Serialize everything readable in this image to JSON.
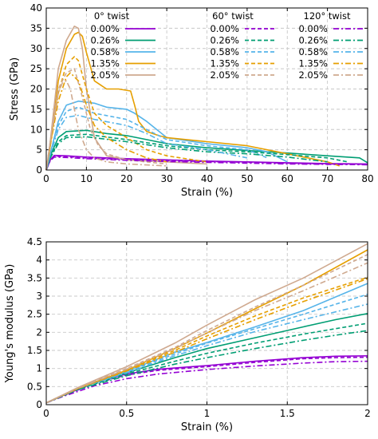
{
  "colors": {
    "0.00%": "#9400d3",
    "0.26%": "#009e73",
    "0.58%": "#56b4e9",
    "1.35%": "#e69f00",
    "2.05%": "#cfa98f"
  },
  "chart_data": [
    {
      "type": "line",
      "title": "",
      "xlabel": "Strain (%)",
      "ylabel": "Stress (GPa)",
      "xlim": [
        0,
        80
      ],
      "ylim": [
        0,
        40
      ],
      "xticks": [
        "0",
        "10",
        "20",
        "30",
        "40",
        "50",
        "60",
        "70",
        "80"
      ],
      "yticks": [
        "0",
        "5",
        "10",
        "15",
        "20",
        "25",
        "30",
        "35",
        "40"
      ],
      "grid": true,
      "legend": {
        "placement": "top-right",
        "group_titles": [
          "0° twist",
          "60° twist",
          "120° twist"
        ],
        "entries": [
          "0.00%",
          "0.26%",
          "0.58%",
          "1.35%",
          "2.05%"
        ]
      },
      "series": [
        {
          "twist": "0°",
          "level": "0.00%",
          "style": "solid",
          "x": [
            0,
            1,
            2,
            5,
            10,
            20,
            30,
            40,
            50,
            60,
            70,
            80
          ],
          "y": [
            0,
            2.5,
            3.6,
            3.5,
            3.2,
            2.8,
            2.5,
            2.2,
            2.0,
            1.8,
            1.6,
            1.5
          ]
        },
        {
          "twist": "0°",
          "level": "0.26%",
          "style": "solid",
          "x": [
            0,
            1,
            3,
            5,
            10,
            15,
            20,
            25,
            30,
            40,
            50,
            60,
            70,
            78,
            80
          ],
          "y": [
            0,
            3.5,
            8,
            9.5,
            9.8,
            9,
            8.5,
            7.5,
            6.5,
            5.5,
            4.8,
            4.2,
            3.5,
            3,
            1.8
          ]
        },
        {
          "twist": "0°",
          "level": "0.58%",
          "style": "solid",
          "x": [
            0,
            1,
            3,
            5,
            8,
            12,
            15,
            20,
            22,
            25,
            30,
            40,
            50,
            55,
            60
          ],
          "y": [
            0,
            4,
            12,
            16,
            17,
            16.5,
            15.5,
            15,
            14,
            12,
            8,
            6.5,
            5.5,
            4.5,
            2
          ]
        },
        {
          "twist": "0°",
          "level": "1.35%",
          "style": "solid",
          "x": [
            0,
            1,
            3,
            5,
            7,
            8,
            9,
            10,
            12,
            15,
            18,
            21,
            22,
            23,
            25,
            28,
            30,
            40,
            50,
            60,
            70,
            73
          ],
          "y": [
            0,
            6,
            22,
            30,
            33.5,
            34,
            33,
            29,
            22,
            20,
            20,
            19.5,
            16,
            12,
            9.5,
            8.5,
            8,
            7,
            6,
            4,
            2,
            1
          ]
        },
        {
          "twist": "0°",
          "level": "2.05%",
          "style": "solid",
          "x": [
            0,
            1,
            3,
            5,
            7,
            8,
            9,
            10,
            12,
            15,
            20,
            30,
            40
          ],
          "y": [
            0,
            7,
            25,
            32,
            35.5,
            35,
            30,
            20,
            8,
            3.5,
            2.5,
            2,
            1.5
          ]
        },
        {
          "twist": "60°",
          "level": "0.00%",
          "style": "dashed",
          "x": [
            0,
            1,
            2,
            5,
            10,
            20,
            30,
            40,
            50,
            60,
            70,
            80
          ],
          "y": [
            0,
            2.4,
            3.4,
            3.3,
            3.0,
            2.6,
            2.3,
            2.1,
            1.9,
            1.7,
            1.5,
            1.4
          ]
        },
        {
          "twist": "60°",
          "level": "0.26%",
          "style": "dashed",
          "x": [
            0,
            1,
            3,
            5,
            10,
            20,
            30,
            40,
            50,
            60,
            70,
            75
          ],
          "y": [
            0,
            3,
            7,
            8.5,
            8.8,
            7.5,
            6,
            5,
            4.5,
            3.8,
            3,
            2
          ]
        },
        {
          "twist": "60°",
          "level": "0.58%",
          "style": "dashed",
          "x": [
            0,
            1,
            3,
            5,
            8,
            12,
            20,
            25,
            30,
            40,
            50,
            55
          ],
          "y": [
            0,
            4,
            11,
            14.5,
            15.5,
            14,
            12.5,
            10,
            7.5,
            6,
            5,
            3
          ]
        },
        {
          "twist": "60°",
          "level": "1.35%",
          "style": "dashed",
          "x": [
            0,
            1,
            3,
            5,
            7,
            8,
            10,
            12,
            15,
            20,
            25,
            30,
            40
          ],
          "y": [
            0,
            6,
            19,
            26,
            28,
            27,
            20,
            14,
            11,
            8,
            5,
            3.5,
            2
          ]
        },
        {
          "twist": "60°",
          "level": "2.05%",
          "style": "dashed",
          "x": [
            0,
            1,
            3,
            5,
            7,
            9,
            11,
            13,
            15,
            20,
            30
          ],
          "y": [
            0,
            7,
            20,
            24,
            25,
            18,
            10,
            6,
            4,
            2.5,
            1.5
          ]
        },
        {
          "twist": "120°",
          "level": "0.00%",
          "style": "dashdot",
          "x": [
            0,
            1,
            2,
            5,
            10,
            20,
            30,
            40,
            50,
            60,
            70,
            80
          ],
          "y": [
            0,
            2.3,
            3.2,
            3.1,
            2.8,
            2.4,
            2.1,
            1.9,
            1.7,
            1.5,
            1.4,
            1.3
          ]
        },
        {
          "twist": "120°",
          "level": "0.26%",
          "style": "dashdot",
          "x": [
            0,
            1,
            3,
            5,
            10,
            20,
            30,
            40,
            50,
            60,
            70
          ],
          "y": [
            0,
            3,
            6.5,
            8,
            8.2,
            7,
            5.5,
            4.5,
            4,
            3.2,
            2
          ]
        },
        {
          "twist": "120°",
          "level": "0.58%",
          "style": "dashdot",
          "x": [
            0,
            1,
            3,
            5,
            8,
            12,
            20,
            25,
            30,
            40,
            50
          ],
          "y": [
            0,
            3.8,
            10,
            13,
            13.5,
            12.5,
            11,
            9,
            6.5,
            5,
            3
          ]
        },
        {
          "twist": "120°",
          "level": "1.35%",
          "style": "dashdot",
          "x": [
            0,
            1,
            3,
            5,
            6,
            8,
            10,
            12,
            15,
            20,
            25,
            30
          ],
          "y": [
            0,
            6,
            17,
            23,
            24,
            22,
            16,
            11,
            8,
            5,
            3,
            2
          ]
        },
        {
          "twist": "120°",
          "level": "2.05%",
          "style": "dashdot",
          "x": [
            0,
            1,
            3,
            4,
            5,
            6,
            7,
            8,
            10,
            12,
            15,
            20,
            30
          ],
          "y": [
            0,
            7,
            19,
            21.5,
            22,
            20,
            15,
            10,
            5,
            3,
            2,
            1.5,
            1
          ]
        }
      ]
    },
    {
      "type": "line",
      "title": "",
      "xlabel": "Strain (%)",
      "ylabel": "Young's modulus (GPa)",
      "xlim": [
        0,
        2
      ],
      "ylim": [
        0,
        4.5
      ],
      "xticks": [
        "0",
        "0.5",
        "1",
        "1.5",
        "2"
      ],
      "yticks": [
        "0",
        "0.5",
        "1",
        "1.5",
        "2",
        "2.5",
        "3",
        "3.5",
        "4",
        "4.5"
      ],
      "grid": true,
      "series": [
        {
          "twist": "0°",
          "level": "0.00%",
          "style": "solid",
          "x": [
            0,
            0.1,
            0.3,
            0.5,
            0.7,
            1.0,
            1.3,
            1.6,
            1.8,
            2.0
          ],
          "y": [
            0.05,
            0.25,
            0.6,
            0.85,
            0.98,
            1.08,
            1.2,
            1.3,
            1.34,
            1.35
          ]
        },
        {
          "twist": "0°",
          "level": "0.26%",
          "style": "solid",
          "x": [
            0,
            0.2,
            0.5,
            0.8,
            1.0,
            1.3,
            1.6,
            1.8,
            2.0
          ],
          "y": [
            0.05,
            0.45,
            0.88,
            1.3,
            1.55,
            1.85,
            2.15,
            2.35,
            2.52
          ]
        },
        {
          "twist": "0°",
          "level": "0.58%",
          "style": "solid",
          "x": [
            0,
            0.2,
            0.5,
            0.8,
            1.0,
            1.3,
            1.6,
            2.0
          ],
          "y": [
            0.05,
            0.45,
            0.92,
            1.45,
            1.72,
            2.15,
            2.6,
            3.35
          ]
        },
        {
          "twist": "0°",
          "level": "1.35%",
          "style": "solid",
          "x": [
            0,
            0.2,
            0.5,
            0.8,
            1.0,
            1.3,
            1.6,
            2.0
          ],
          "y": [
            0.05,
            0.45,
            0.95,
            1.55,
            1.98,
            2.65,
            3.3,
            4.28
          ]
        },
        {
          "twist": "0°",
          "level": "2.05%",
          "style": "solid",
          "x": [
            0,
            0.2,
            0.5,
            0.8,
            1.0,
            1.3,
            1.6,
            2.0
          ],
          "y": [
            0.05,
            0.48,
            1.05,
            1.7,
            2.2,
            2.9,
            3.5,
            4.45
          ]
        },
        {
          "twist": "60°",
          "level": "0.00%",
          "style": "dashed",
          "x": [
            0,
            0.1,
            0.3,
            0.5,
            0.7,
            1.0,
            1.3,
            1.6,
            1.8,
            2.0
          ],
          "y": [
            0.05,
            0.24,
            0.58,
            0.82,
            0.95,
            1.05,
            1.17,
            1.27,
            1.3,
            1.31
          ]
        },
        {
          "twist": "60°",
          "level": "0.26%",
          "style": "dashed",
          "x": [
            0,
            0.2,
            0.5,
            0.8,
            1.0,
            1.3,
            1.6,
            1.8,
            2.0
          ],
          "y": [
            0.05,
            0.43,
            0.85,
            1.2,
            1.42,
            1.7,
            1.95,
            2.1,
            2.25
          ]
        },
        {
          "twist": "60°",
          "level": "0.58%",
          "style": "dashed",
          "x": [
            0,
            0.2,
            0.5,
            0.8,
            1.0,
            1.3,
            1.6,
            2.0
          ],
          "y": [
            0.05,
            0.45,
            0.9,
            1.4,
            1.7,
            2.1,
            2.5,
            3.05
          ]
        },
        {
          "twist": "60°",
          "level": "1.35%",
          "style": "dashed",
          "x": [
            0,
            0.2,
            0.5,
            0.8,
            1.0,
            1.3,
            1.6,
            2.0
          ],
          "y": [
            0.05,
            0.45,
            0.95,
            1.5,
            1.9,
            2.45,
            2.95,
            3.52
          ]
        },
        {
          "twist": "60°",
          "level": "2.05%",
          "style": "dashed",
          "x": [
            0,
            0.2,
            0.5,
            0.8,
            1.0,
            1.3,
            1.6,
            2.0
          ],
          "y": [
            0.05,
            0.47,
            1.0,
            1.58,
            2.05,
            2.7,
            3.3,
            4.15
          ]
        },
        {
          "twist": "120°",
          "level": "0.00%",
          "style": "dashdot",
          "x": [
            0,
            0.1,
            0.3,
            0.5,
            0.7,
            1.0,
            1.3,
            1.6,
            1.8,
            2.0
          ],
          "y": [
            0.05,
            0.22,
            0.52,
            0.72,
            0.85,
            0.97,
            1.07,
            1.15,
            1.19,
            1.2
          ]
        },
        {
          "twist": "120°",
          "level": "0.26%",
          "style": "dashdot",
          "x": [
            0,
            0.2,
            0.5,
            0.8,
            1.0,
            1.3,
            1.6,
            1.8,
            2.0
          ],
          "y": [
            0.05,
            0.42,
            0.8,
            1.12,
            1.3,
            1.55,
            1.78,
            1.92,
            2.05
          ]
        },
        {
          "twist": "120°",
          "level": "0.58%",
          "style": "dashdot",
          "x": [
            0,
            0.2,
            0.5,
            0.8,
            1.0,
            1.3,
            1.6,
            2.0
          ],
          "y": [
            0.05,
            0.45,
            0.88,
            1.35,
            1.63,
            2.02,
            2.35,
            2.78
          ]
        },
        {
          "twist": "120°",
          "level": "1.35%",
          "style": "dashdot",
          "x": [
            0,
            0.2,
            0.5,
            0.8,
            1.0,
            1.3,
            1.6,
            2.0
          ],
          "y": [
            0.05,
            0.45,
            0.93,
            1.45,
            1.82,
            2.35,
            2.85,
            3.48
          ]
        },
        {
          "twist": "120°",
          "level": "2.05%",
          "style": "dashdot",
          "x": [
            0,
            0.2,
            0.5,
            0.8,
            1.0,
            1.3,
            1.6,
            2.0
          ],
          "y": [
            0.05,
            0.46,
            0.98,
            1.55,
            1.98,
            2.6,
            3.15,
            3.92
          ]
        }
      ]
    }
  ]
}
